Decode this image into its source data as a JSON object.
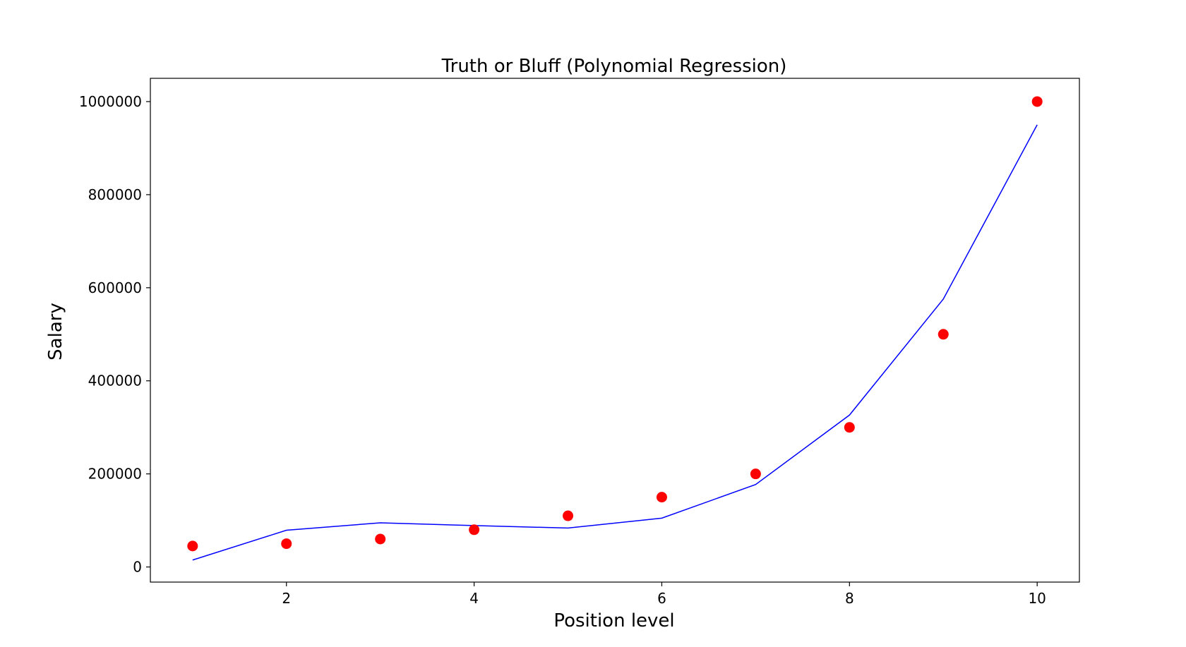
{
  "chart_data": {
    "type": "scatter",
    "title": "Truth or Bluff (Polynomial Regression)",
    "xlabel": "Position level",
    "ylabel": "Salary",
    "xlim": [
      0.55,
      10.45
    ],
    "ylim": [
      -32500,
      1050000
    ],
    "xticks": [
      2,
      4,
      6,
      8,
      10
    ],
    "yticks": [
      0,
      200000,
      400000,
      600000,
      800000,
      1000000
    ],
    "grid": false,
    "legend": null,
    "series": [
      {
        "kind": "scatter",
        "color": "#ff0000",
        "x": [
          1,
          2,
          3,
          4,
          5,
          6,
          7,
          8,
          9,
          10
        ],
        "y": [
          45000,
          50000,
          60000,
          80000,
          110000,
          150000,
          200000,
          300000,
          500000,
          1000000
        ]
      },
      {
        "kind": "line",
        "color": "#0000ff",
        "x": [
          1,
          2,
          3,
          4,
          5,
          6,
          7,
          8,
          9,
          10
        ],
        "y": [
          14902,
          78932,
          94868,
          88960,
          83597,
          104913,
          177099,
          326389,
          575723,
          950067
        ]
      }
    ]
  }
}
